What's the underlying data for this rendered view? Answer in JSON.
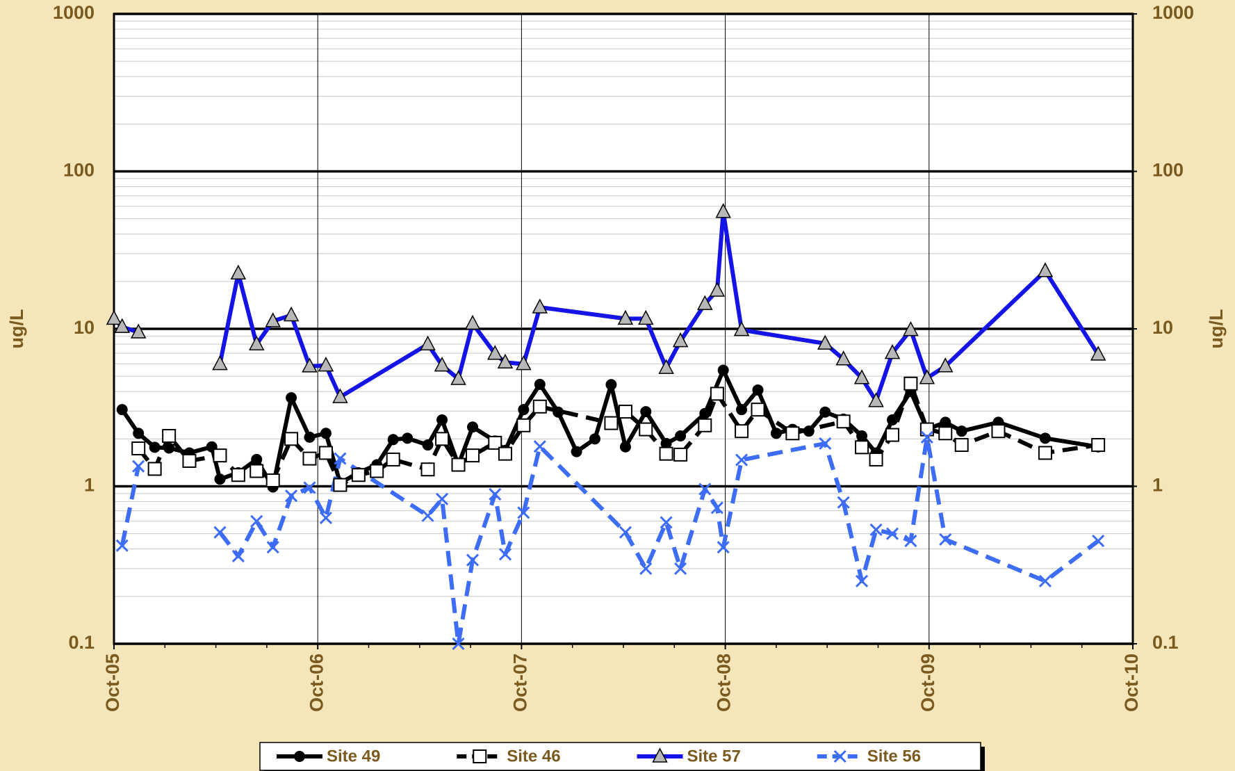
{
  "chart_data": {
    "type": "line",
    "y_label": "ug/L",
    "y2_label": "ug/L",
    "log_scale": true,
    "grid": true,
    "minor_grid": true,
    "xlim": [
      2005.75,
      2010.75
    ],
    "xticks": [
      {
        "value": 2005.75,
        "label": "Oct-05"
      },
      {
        "value": 2006.75,
        "label": "Oct-06"
      },
      {
        "value": 2007.75,
        "label": "Oct-07"
      },
      {
        "value": 2008.75,
        "label": "Oct-08"
      },
      {
        "value": 2009.75,
        "label": "Oct-09"
      },
      {
        "value": 2010.75,
        "label": "Oct-10"
      }
    ],
    "ylim": [
      0.1,
      1000
    ],
    "yticks": [
      0.1,
      1,
      10,
      100,
      1000
    ],
    "y2lim": [
      0.1,
      1000
    ],
    "y2ticks": [
      0.1,
      1,
      10,
      100,
      1000
    ],
    "legend": "bottom",
    "series": [
      {
        "name": "Site 49",
        "color": "#000000",
        "dash": false,
        "marker": "circle",
        "x": [
          2005.79,
          2005.87,
          2005.95,
          2006.02,
          2006.12,
          2006.23,
          2006.27,
          2006.36,
          2006.45,
          2006.53,
          2006.62,
          2006.71,
          2006.79,
          2006.86,
          2006.95,
          2007.04,
          2007.12,
          2007.19,
          2007.29,
          2007.36,
          2007.44,
          2007.51,
          2007.62,
          2007.67,
          2007.76,
          2007.84,
          2007.93,
          2008.02,
          2008.11,
          2008.19,
          2008.26,
          2008.36,
          2008.46,
          2008.53,
          2008.65,
          2008.74,
          2008.83,
          2008.91,
          2009.0,
          2009.08,
          2009.16,
          2009.24,
          2009.33,
          2009.42,
          2009.49,
          2009.57,
          2009.66,
          2009.74,
          2009.83,
          2009.91,
          2010.09,
          2010.32,
          2010.58
        ],
        "values": [
          3.07,
          2.17,
          1.77,
          1.75,
          1.63,
          1.78,
          1.11,
          1.22,
          1.48,
          0.99,
          3.65,
          2.05,
          2.17,
          1.05,
          1.22,
          1.37,
          1.98,
          2.02,
          1.83,
          2.64,
          1.37,
          2.38,
          1.94,
          1.69,
          3.07,
          4.44,
          2.96,
          1.66,
          2.0,
          4.42,
          1.78,
          2.98,
          1.87,
          2.09,
          2.9,
          5.46,
          3.07,
          4.09,
          2.17,
          2.3,
          2.24,
          2.96,
          2.67,
          2.09,
          1.63,
          2.64,
          4.0,
          2.3,
          2.55,
          2.24,
          2.55,
          2.02,
          1.78
        ]
      },
      {
        "name": "Site 46",
        "color": "#000000",
        "dash": true,
        "marker": "square",
        "x": [
          2005.87,
          2005.95,
          2006.02,
          2006.12,
          2006.27,
          2006.36,
          2006.45,
          2006.53,
          2006.62,
          2006.71,
          2006.79,
          2006.86,
          2006.95,
          2007.04,
          2007.12,
          2007.29,
          2007.36,
          2007.44,
          2007.51,
          2007.62,
          2007.67,
          2007.76,
          2007.84,
          2008.19,
          2008.26,
          2008.36,
          2008.46,
          2008.53,
          2008.65,
          2008.71,
          2008.83,
          2008.91,
          2009.08,
          2009.33,
          2009.42,
          2009.49,
          2009.57,
          2009.66,
          2009.74,
          2009.83,
          2009.91,
          2010.09,
          2010.32,
          2010.58
        ],
        "values": [
          1.74,
          1.29,
          2.09,
          1.45,
          1.57,
          1.18,
          1.25,
          1.09,
          2.0,
          1.5,
          1.63,
          1.02,
          1.18,
          1.25,
          1.48,
          1.28,
          2.0,
          1.37,
          1.57,
          1.89,
          1.61,
          2.44,
          3.21,
          2.52,
          2.98,
          2.3,
          1.61,
          1.59,
          2.44,
          3.87,
          2.24,
          3.07,
          2.17,
          2.58,
          1.77,
          1.48,
          2.12,
          4.49,
          2.3,
          2.17,
          1.83,
          2.24,
          1.63,
          1.83
        ]
      },
      {
        "name": "Site 57",
        "color": "#1414e6",
        "dash": false,
        "marker": "triangle",
        "x": [
          2005.75,
          2005.79,
          2005.87,
          null,
          2006.27,
          2006.36,
          2006.45,
          2006.53,
          2006.62,
          2006.71,
          2006.79,
          2006.86,
          2007.29,
          2007.36,
          2007.44,
          2007.51,
          2007.62,
          2007.67,
          2007.76,
          2007.84,
          2008.26,
          2008.36,
          2008.46,
          2008.53,
          2008.65,
          2008.71,
          2008.74,
          2008.83,
          2009.24,
          2009.33,
          2009.42,
          2009.49,
          2009.57,
          2009.66,
          2009.74,
          2009.83,
          2010.32,
          2010.58
        ],
        "values": [
          11.6,
          10.3,
          9.5,
          null,
          5.98,
          22.5,
          7.98,
          11.2,
          12.2,
          5.78,
          5.86,
          3.69,
          7.98,
          5.86,
          4.81,
          10.8,
          6.95,
          6.12,
          5.98,
          13.7,
          11.6,
          11.6,
          5.65,
          8.36,
          14.4,
          17.5,
          55.3,
          9.84,
          8.07,
          6.41,
          4.87,
          3.48,
          7.03,
          9.84,
          4.87,
          5.79,
          23.3,
          6.87
        ]
      },
      {
        "name": "Site 56",
        "color": "#3d6cf5",
        "dash": true,
        "marker": "x",
        "x": [
          2005.79,
          2005.87,
          null,
          2006.27,
          2006.36,
          2006.45,
          2006.53,
          2006.62,
          2006.71,
          2006.79,
          2006.86,
          2007.29,
          2007.36,
          2007.44,
          2007.51,
          2007.62,
          2007.67,
          2007.76,
          2007.84,
          2008.26,
          2008.36,
          2008.46,
          2008.53,
          2008.65,
          2008.71,
          2008.74,
          2008.83,
          2009.24,
          2009.33,
          2009.42,
          2009.49,
          2009.57,
          2009.66,
          2009.74,
          2009.83,
          2010.32,
          2010.58
        ],
        "values": [
          0.42,
          1.34,
          null,
          0.51,
          0.36,
          0.6,
          0.41,
          0.87,
          0.98,
          0.63,
          1.5,
          0.65,
          0.83,
          0.1,
          0.34,
          0.89,
          0.37,
          0.68,
          1.79,
          0.51,
          0.3,
          0.59,
          0.3,
          0.96,
          0.73,
          0.41,
          1.47,
          1.87,
          0.79,
          0.25,
          0.53,
          0.5,
          0.45,
          2.05,
          0.46,
          0.25,
          0.45
        ]
      }
    ]
  }
}
